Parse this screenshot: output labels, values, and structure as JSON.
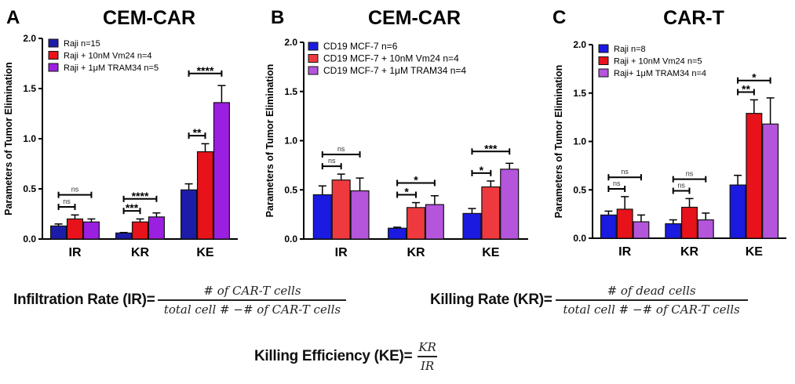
{
  "colors": {
    "blue": "#1a1ad6",
    "red": "#e8121a",
    "purple": "#a63ad8"
  },
  "chart_data": [
    {
      "type": "bar",
      "panel_letter": "A",
      "title": "CEM-CAR",
      "ylabel": "Parameters of Tumor Elimination",
      "ylim": [
        0,
        2.0
      ],
      "yticks": [
        "0.0",
        "0.5",
        "1.0",
        "1.5",
        "2.0"
      ],
      "categories": [
        "IR",
        "KR",
        "KE"
      ],
      "legend_placement": "top-left",
      "colors": [
        "#1c1ca8",
        "#e8121a",
        "#9b1fe0"
      ],
      "series": [
        {
          "name": "Raji  n=15",
          "values": [
            0.13,
            0.06,
            0.49
          ],
          "errors": [
            0.02,
            0.005,
            0.06
          ]
        },
        {
          "name": "Raji + 10nM Vm24  n=4",
          "values": [
            0.2,
            0.17,
            0.87
          ],
          "errors": [
            0.04,
            0.03,
            0.08
          ]
        },
        {
          "name": "Raji + 1μM TRAM34 n=5",
          "values": [
            0.17,
            0.22,
            1.36
          ],
          "errors": [
            0.03,
            0.04,
            0.17
          ]
        }
      ],
      "significance": [
        [
          "ns",
          "ns"
        ],
        [
          "***",
          "****"
        ],
        [
          "**",
          "****"
        ]
      ]
    },
    {
      "type": "bar",
      "panel_letter": "B",
      "title": "CEM-CAR",
      "ylabel": "Parameters of Tumor Elimination",
      "ylim": [
        0,
        2.0
      ],
      "yticks": [
        "0.0",
        "0.5",
        "1.0",
        "1.5",
        "2.0"
      ],
      "categories": [
        "IR",
        "KR",
        "KE"
      ],
      "legend_placement": "top-left",
      "colors": [
        "#1a1ae0",
        "#ee3a3e",
        "#b455dc"
      ],
      "series": [
        {
          "name": "CD19 MCF-7 n=6",
          "values": [
            0.45,
            0.11,
            0.26
          ],
          "errors": [
            0.09,
            0.01,
            0.05
          ]
        },
        {
          "name": "CD19 MCF-7 + 10nM Vm24  n=4",
          "values": [
            0.6,
            0.32,
            0.53
          ],
          "errors": [
            0.06,
            0.05,
            0.06
          ]
        },
        {
          "name": "CD19 MCF-7 + 1μM TRAM34  n=4",
          "values": [
            0.49,
            0.35,
            0.71
          ],
          "errors": [
            0.13,
            0.09,
            0.06
          ]
        }
      ],
      "significance": [
        [
          "ns",
          "ns"
        ],
        [
          "*",
          "*"
        ],
        [
          "*",
          "***"
        ]
      ]
    },
    {
      "type": "bar",
      "panel_letter": "C",
      "title": "CAR-T",
      "ylabel": "Parameters of Tumor Elimination",
      "ylim": [
        0,
        2.0
      ],
      "yticks": [
        "0.0",
        "0.5",
        "1.0",
        "1.5",
        "2.0"
      ],
      "categories": [
        "IR",
        "KR",
        "KE"
      ],
      "legend_placement": "top-left",
      "colors": [
        "#1a1ae0",
        "#e8121a",
        "#b455dc"
      ],
      "series": [
        {
          "name": "Raji  n=8",
          "values": [
            0.24,
            0.15,
            0.55
          ],
          "errors": [
            0.04,
            0.04,
            0.1
          ]
        },
        {
          "name": "Raji + 10nM Vm24  n=5",
          "values": [
            0.3,
            0.32,
            1.29
          ],
          "errors": [
            0.13,
            0.09,
            0.14
          ]
        },
        {
          "name": "Raji+ 1μM TRAM34  n=4",
          "values": [
            0.17,
            0.19,
            1.18
          ],
          "errors": [
            0.07,
            0.07,
            0.27
          ]
        }
      ],
      "significance": [
        [
          "ns",
          "ns"
        ],
        [
          "ns",
          "ns"
        ],
        [
          "**",
          "*"
        ]
      ]
    }
  ],
  "formulas": {
    "ir": {
      "label": "Infiltration Rate (IR)=",
      "numerator": "# of CAR-T cells",
      "denominator": "total cell # −# of CAR-T cells"
    },
    "kr": {
      "label": "Killing Rate (KR)=",
      "numerator": "# of dead cells",
      "denominator": "total cell # −# of CAR-T cells"
    },
    "ke": {
      "label": "Killing Efficiency (KE)=",
      "numerator": "KR",
      "denominator": "IR"
    }
  }
}
